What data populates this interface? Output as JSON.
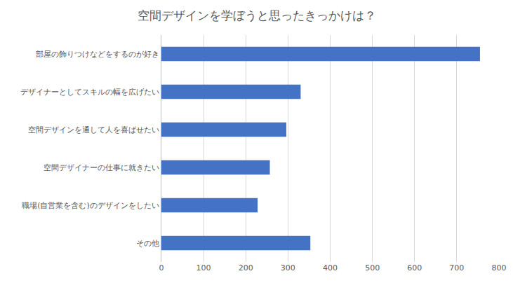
{
  "chart_data": {
    "type": "bar",
    "orientation": "horizontal",
    "title": "空間デザインを学ぼうと思ったきっかけは？",
    "categories": [
      "部屋の飾りつけなどをするのが好き",
      "デザイナーとしてスキルの幅を広げたい",
      "空間デザインを通して人を喜ばせたい",
      "空間デザイナーの仕事に就きたい",
      "職場(自営業を含む)のデザインをしたい",
      "その他"
    ],
    "values": [
      755,
      330,
      296,
      257,
      228,
      353
    ],
    "color": "#4472c4",
    "xlim": [
      0,
      800
    ],
    "xticks": [
      0,
      100,
      200,
      300,
      400,
      500,
      600,
      700,
      800
    ],
    "grid": true
  }
}
